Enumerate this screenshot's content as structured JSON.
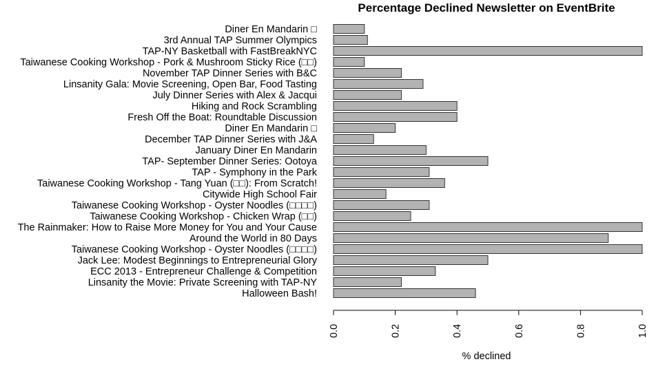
{
  "chart_data": {
    "type": "bar",
    "orientation": "horizontal",
    "title": "Percentage Declined Newsletter on EventBrite",
    "xlabel": "% declined",
    "ylabel": "",
    "xlim": [
      0,
      1
    ],
    "xticks": [
      "0.0",
      "0.2",
      "0.4",
      "0.6",
      "0.8",
      "1.0"
    ],
    "grid": false,
    "bar_color": "#b3b3b3",
    "categories": [
      "Diner En Mandarin □",
      "3rd Annual TAP Summer Olympics",
      "TAP-NY Basketball with FastBreakNYC",
      "Taiwanese Cooking Workshop - Pork & Mushroom Sticky Rice (□□)",
      "November TAP Dinner Series with B&C",
      "Linsanity Gala: Movie Screening, Open Bar, Food Tasting",
      "July Dinner Series with Alex & Jacqui",
      "Hiking and Rock Scrambling",
      "Fresh Off the Boat: Roundtable Discussion",
      "Diner En Mandarin □",
      "December TAP Dinner Series with J&A",
      "January Diner En Mandarin",
      "TAP- September Dinner Series: Ootoya",
      "TAP - Symphony in the Park",
      "Taiwanese Cooking Workshop - Tang Yuan (□□): From Scratch!",
      "Citywide High School Fair",
      "Taiwanese Cooking Workshop - Oyster Noodles (□□□□)",
      "Taiwanese Cooking Workshop - Chicken Wrap (□□)",
      "The Rainmaker: How to Raise More Money for You and Your Cause",
      "Around the World in 80 Days",
      "Taiwanese Cooking Workshop - Oyster Noodles   (□□□□)",
      "Jack Lee: Modest Beginnings to Entrepreneurial Glory",
      "ECC 2013 - Entrepreneur Challenge & Competition",
      "Linsanity the Movie: Private Screening with TAP-NY",
      "Halloween Bash!"
    ],
    "values": [
      0.1,
      0.11,
      1.0,
      0.1,
      0.22,
      0.29,
      0.22,
      0.4,
      0.4,
      0.2,
      0.13,
      0.3,
      0.5,
      0.31,
      0.36,
      0.17,
      0.31,
      0.25,
      1.0,
      0.89,
      1.0,
      0.5,
      0.33,
      0.22,
      0.46
    ]
  }
}
